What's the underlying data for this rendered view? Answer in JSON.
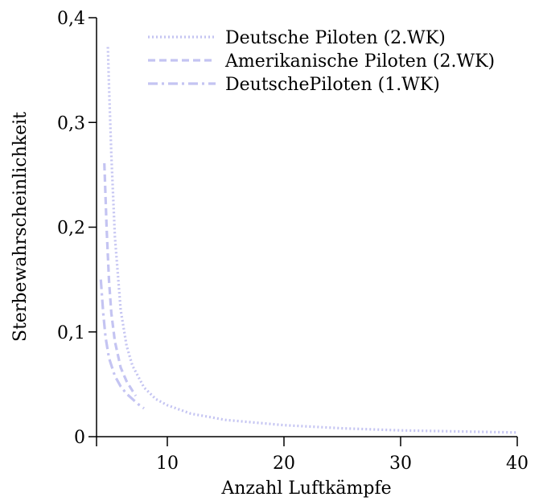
{
  "chart_data": {
    "type": "line",
    "title": "",
    "xlabel": "Anzahl Luftkämpfe",
    "ylabel": "Sterbewahrscheinlichkeit",
    "xlim": [
      4,
      40
    ],
    "ylim": [
      0,
      0.4
    ],
    "x_ticks": [
      {
        "value": 10,
        "label": "10"
      },
      {
        "value": 20,
        "label": "20"
      },
      {
        "value": 30,
        "label": "30"
      },
      {
        "value": 40,
        "label": "40"
      }
    ],
    "y_ticks": [
      {
        "value": 0,
        "label": "0"
      },
      {
        "value": 0.1,
        "label": "0,1"
      },
      {
        "value": 0.2,
        "label": "0,2"
      },
      {
        "value": 0.3,
        "label": "0,3"
      },
      {
        "value": 0.4,
        "label": "0,4"
      }
    ],
    "grid": false,
    "legend_position": "top-right",
    "series": [
      {
        "name": "Deutsche Piloten (2.WK)",
        "style": "dotted",
        "color": "#c4c4f2",
        "x": [
          4.9,
          5.0,
          5.2,
          5.5,
          6.0,
          6.5,
          7.0,
          8.0,
          9.0,
          10.0,
          12.0,
          15.0,
          20.0,
          25.0,
          30.0,
          35.0,
          39.9
        ],
        "y": [
          0.372,
          0.335,
          0.269,
          0.191,
          0.121,
          0.087,
          0.068,
          0.047,
          0.036,
          0.03,
          0.022,
          0.016,
          0.011,
          0.008,
          0.006,
          0.005,
          0.004
        ]
      },
      {
        "name": "Amerikanische Piloten (2.WK)",
        "style": "dashed",
        "color": "#c4c4f2",
        "x": [
          4.6,
          4.8,
          5.0,
          5.2,
          5.5,
          6.0,
          6.5,
          7.0,
          7.3
        ],
        "y": [
          0.261,
          0.198,
          0.149,
          0.118,
          0.091,
          0.066,
          0.053,
          0.044,
          0.039
        ]
      },
      {
        "name": "DeutschePiloten (1.WK)",
        "style": "dashdot",
        "color": "#c4c4f2",
        "x": [
          4.3,
          4.5,
          4.7,
          5.0,
          5.5,
          6.0,
          6.5,
          7.0,
          7.5,
          8.0
        ],
        "y": [
          0.15,
          0.118,
          0.095,
          0.075,
          0.058,
          0.048,
          0.041,
          0.036,
          0.031,
          0.027
        ]
      }
    ]
  }
}
